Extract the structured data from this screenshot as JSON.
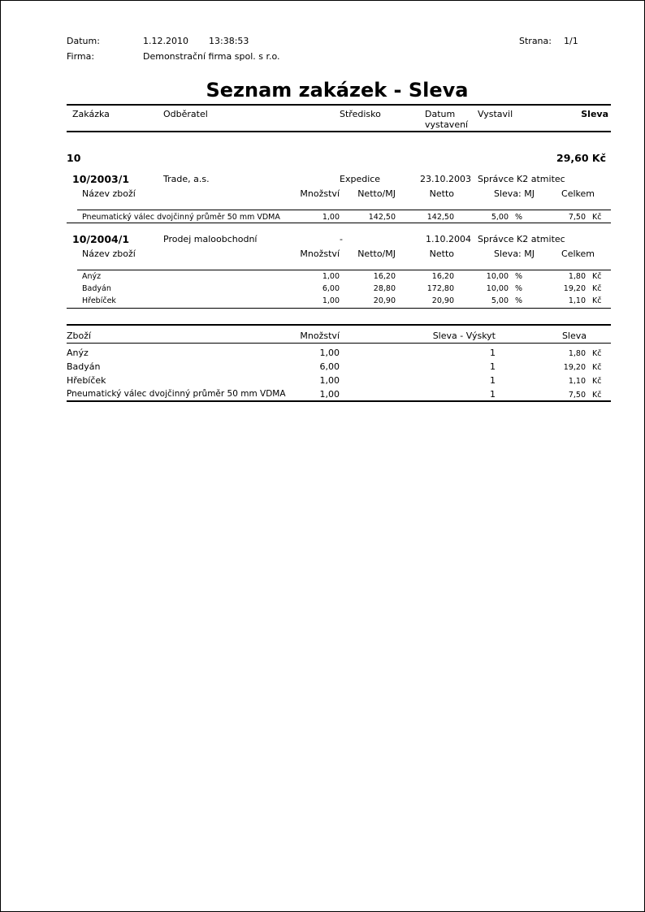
{
  "header": {
    "date_label": "Datum:",
    "date": "1.12.2010",
    "time": "13:38:53",
    "page_label": "Strana:",
    "page": "1/1",
    "firm_label": "Firma:",
    "firm": "Demonstrační firma spol. s r.o."
  },
  "title": "Seznam zakázek - Sleva",
  "columns": {
    "order": "Zakázka",
    "customer": "Odběratel",
    "center": "Středisko",
    "date_1": "Datum",
    "date_2": "vystavení",
    "issued_by": "Vystavil",
    "discount": "Sleva"
  },
  "group": {
    "name": "10",
    "total": "29,60 Kč"
  },
  "item_columns": {
    "name": "Název zboží",
    "qty": "Množství",
    "net_unit": "Netto/MJ",
    "net": "Netto",
    "discount_unit": "Sleva: MJ",
    "total": "Celkem"
  },
  "orders": [
    {
      "number": "10/2003/1",
      "customer": "Trade, a.s.",
      "center": "Expedice",
      "date": "23.10.2003",
      "issued_by": "Správce K2 atmitec",
      "items": [
        {
          "name": "Pneumatický válec dvojčinný průměr 50 mm VDMA",
          "qty": "1,00",
          "net_unit": "142,50",
          "net": "142,50",
          "discount": "5,00",
          "unit": "%",
          "total": "7,50",
          "currency": "Kč"
        }
      ]
    },
    {
      "number": "10/2004/1",
      "customer": "Prodej maloobchodní",
      "center": "-",
      "date": "1.10.2004",
      "issued_by": "Správce K2 atmitec",
      "items": [
        {
          "name": "Anýz",
          "qty": "1,00",
          "net_unit": "16,20",
          "net": "16,20",
          "discount": "10,00",
          "unit": "%",
          "total": "1,80",
          "currency": "Kč"
        },
        {
          "name": "Badyán",
          "qty": "6,00",
          "net_unit": "28,80",
          "net": "172,80",
          "discount": "10,00",
          "unit": "%",
          "total": "19,20",
          "currency": "Kč"
        },
        {
          "name": "Hřebíček",
          "qty": "1,00",
          "net_unit": "20,90",
          "net": "20,90",
          "discount": "5,00",
          "unit": "%",
          "total": "1,10",
          "currency": "Kč"
        }
      ]
    }
  ],
  "summary": {
    "columns": {
      "goods": "Zboží",
      "qty": "Množství",
      "occurrence": "Sleva - Výskyt",
      "discount": "Sleva"
    },
    "rows": [
      {
        "name": "Anýz",
        "qty": "1,00",
        "occurrence": "1",
        "discount": "1,80",
        "currency": "Kč"
      },
      {
        "name": "Badyán",
        "qty": "6,00",
        "occurrence": "1",
        "discount": "19,20",
        "currency": "Kč"
      },
      {
        "name": "Hřebíček",
        "qty": "1,00",
        "occurrence": "1",
        "discount": "1,10",
        "currency": "Kč"
      },
      {
        "name": "Pneumatický válec dvojčinný průměr 50 mm VDMA",
        "qty": "1,00",
        "occurrence": "1",
        "discount": "7,50",
        "currency": "Kč"
      }
    ]
  }
}
